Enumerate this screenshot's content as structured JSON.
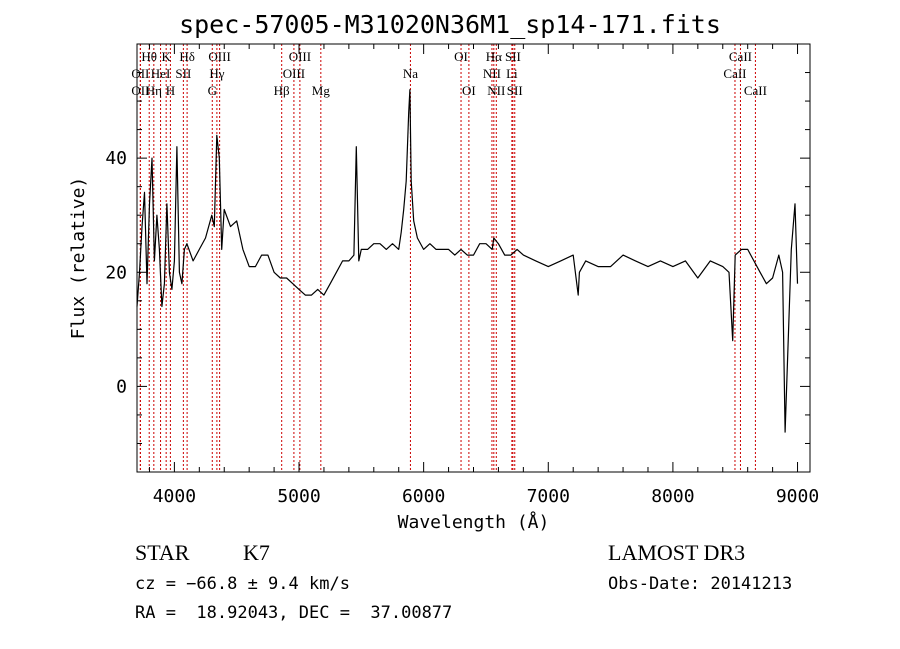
{
  "chart_data": {
    "type": "line",
    "title": "spec-57005-M31020N36M1_sp14-171.fits",
    "xlabel": "Wavelength (Å)",
    "ylabel": "Flux (relative)",
    "xlim": [
      3700,
      9100
    ],
    "ylim": [
      -15,
      60
    ],
    "xticks": [
      4000,
      5000,
      6000,
      7000,
      8000,
      9000
    ],
    "yticks": [
      0,
      20,
      40
    ],
    "grid": false,
    "series": [
      {
        "x": [
          3700,
          3720,
          3740,
          3760,
          3780,
          3800,
          3820,
          3840,
          3860,
          3880,
          3900,
          3920,
          3940,
          3960,
          3980,
          4000,
          4020,
          4040,
          4060,
          4080,
          4100,
          4150,
          4200,
          4250,
          4300,
          4320,
          4340,
          4360,
          4380,
          4400,
          4450,
          4500,
          4550,
          4600,
          4650,
          4700,
          4750,
          4800,
          4850,
          4900,
          4950,
          5000,
          5050,
          5100,
          5150,
          5200,
          5250,
          5300,
          5350,
          5400,
          5440,
          5460,
          5480,
          5500,
          5550,
          5600,
          5650,
          5700,
          5750,
          5800,
          5820,
          5840,
          5860,
          5880,
          5890,
          5900,
          5920,
          5950,
          6000,
          6050,
          6100,
          6150,
          6200,
          6250,
          6300,
          6350,
          6400,
          6450,
          6500,
          6550,
          6563,
          6600,
          6650,
          6700,
          6750,
          6800,
          6900,
          7000,
          7100,
          7200,
          7240,
          7250,
          7300,
          7400,
          7500,
          7600,
          7700,
          7800,
          7900,
          8000,
          8100,
          8200,
          8300,
          8400,
          8450,
          8480,
          8500,
          8550,
          8600,
          8650,
          8700,
          8750,
          8800,
          8850,
          8880,
          8900,
          8950,
          8980,
          9000
        ],
        "y": [
          14,
          20,
          28,
          34,
          18,
          32,
          40,
          22,
          30,
          24,
          14,
          18,
          32,
          20,
          17,
          22,
          42,
          20,
          18,
          24,
          25,
          22,
          24,
          26,
          30,
          28,
          44,
          40,
          24,
          31,
          28,
          29,
          24,
          21,
          21,
          23,
          23,
          20,
          19,
          19,
          18,
          17,
          16,
          16,
          17,
          16,
          18,
          20,
          22,
          22,
          23,
          42,
          22,
          24,
          24,
          25,
          25,
          24,
          25,
          24,
          27,
          31,
          36,
          48,
          52,
          36,
          29,
          26,
          24,
          25,
          24,
          24,
          24,
          23,
          24,
          23,
          23,
          25,
          25,
          24,
          26,
          25,
          23,
          23,
          24,
          23,
          22,
          21,
          22,
          23,
          16,
          20,
          22,
          21,
          21,
          23,
          22,
          21,
          22,
          21,
          22,
          19,
          22,
          21,
          20,
          8,
          23,
          24,
          24,
          22,
          20,
          18,
          19,
          23,
          20,
          -8,
          24,
          32,
          18
        ],
        "color": "#000000"
      }
    ],
    "line_markers": [
      {
        "label": "OII",
        "x": 3727,
        "row": 2
      },
      {
        "label": "OII",
        "x": 3727,
        "row": 3
      },
      {
        "label": "Hθ",
        "x": 3798,
        "row": 1
      },
      {
        "label": "Hη",
        "x": 3835,
        "row": 3
      },
      {
        "label": "HeI",
        "x": 3889,
        "row": 2
      },
      {
        "label": "K",
        "x": 3934,
        "row": 1
      },
      {
        "label": "H",
        "x": 3968,
        "row": 3
      },
      {
        "label": "SII",
        "x": 4072,
        "row": 2
      },
      {
        "label": "Hδ",
        "x": 4102,
        "row": 1
      },
      {
        "label": "G",
        "x": 4304,
        "row": 3
      },
      {
        "label": "OIII",
        "x": 4363,
        "row": 1
      },
      {
        "label": "Hγ",
        "x": 4341,
        "row": 2
      },
      {
        "label": "Hβ",
        "x": 4861,
        "row": 3
      },
      {
        "label": "OIII",
        "x": 4959,
        "row": 2
      },
      {
        "label": "OIII",
        "x": 5007,
        "row": 1
      },
      {
        "label": "Mg",
        "x": 5175,
        "row": 3
      },
      {
        "label": "Na",
        "x": 5894,
        "row": 2
      },
      {
        "label": "OI",
        "x": 6300,
        "row": 1
      },
      {
        "label": "OI",
        "x": 6363,
        "row": 3
      },
      {
        "label": "NII",
        "x": 6548,
        "row": 2
      },
      {
        "label": "Hα",
        "x": 6563,
        "row": 1
      },
      {
        "label": "NII",
        "x": 6583,
        "row": 3
      },
      {
        "label": "Li",
        "x": 6708,
        "row": 2
      },
      {
        "label": "SII",
        "x": 6716,
        "row": 1
      },
      {
        "label": "SII",
        "x": 6731,
        "row": 3
      },
      {
        "label": "CaII",
        "x": 8498,
        "row": 2
      },
      {
        "label": "CaII",
        "x": 8542,
        "row": 1
      },
      {
        "label": "CaII",
        "x": 8662,
        "row": 3
      }
    ],
    "marker_color": "#cc0000"
  },
  "info": {
    "class": "STAR",
    "subclass": "K7",
    "survey": "LAMOST DR3",
    "cz": "cz = −66.8 ± 9.4 km/s",
    "obsdate": "Obs-Date: 20141213",
    "radec": "RA =  18.92043, DEC =  37.00877"
  }
}
